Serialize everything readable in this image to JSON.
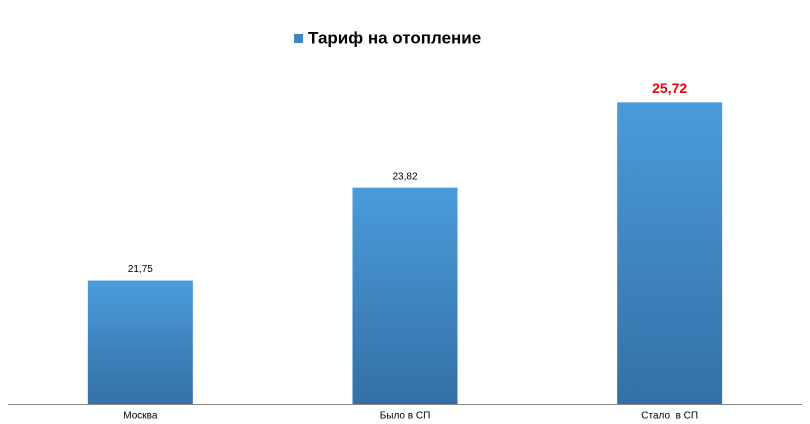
{
  "chart_data": {
    "type": "bar",
    "legend": "Тариф на отопление",
    "categories": [
      "Москва",
      "Было в СП",
      "Стало  в СП"
    ],
    "values": [
      21.75,
      23.82,
      25.72
    ],
    "value_labels": [
      "21,75",
      "23,82",
      "25,72"
    ],
    "value_label_colors": [
      "#000000",
      "#000000",
      "#e8000b"
    ],
    "color": "#4186c8",
    "ylim": [
      19,
      28
    ]
  }
}
